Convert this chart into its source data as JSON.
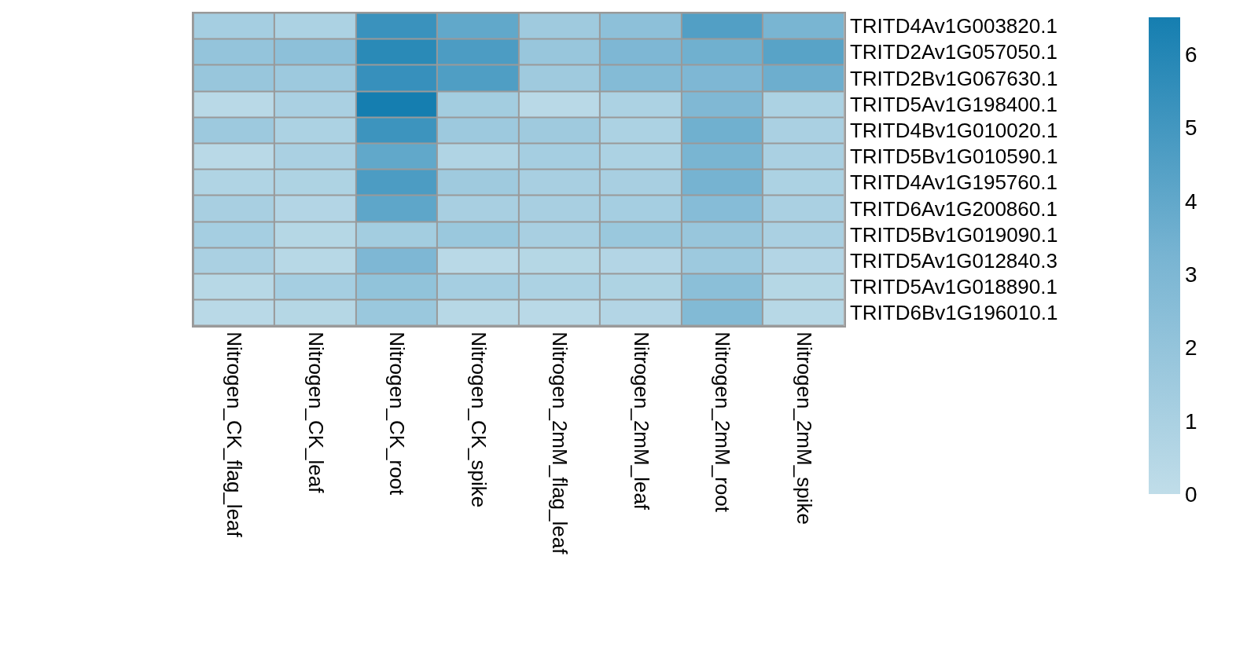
{
  "chart_data": {
    "type": "heatmap",
    "categories": [
      "Nitrogen_CK_flag_leaf",
      "Nitrogen_CK_leaf",
      "Nitrogen_CK_root",
      "Nitrogen_CK_spike",
      "Nitrogen_2mM_flag_leaf",
      "Nitrogen_2mM_leaf",
      "Nitrogen_2mM_root",
      "Nitrogen_2mM_spike"
    ],
    "y_categories": [
      "TRITD4Av1G003820.1",
      "TRITD2Av1G057050.1",
      "TRITD2Bv1G067630.1",
      "TRITD5Av1G198400.1",
      "TRITD4Bv1G010020.1",
      "TRITD5Bv1G010590.1",
      "TRITD4Av1G195760.1",
      "TRITD6Av1G200860.1",
      "TRITD5Bv1G019090.1",
      "TRITD5Av1G012840.3",
      "TRITD5Av1G018890.1",
      "TRITD6Bv1G196010.1"
    ],
    "cells": [
      [
        1.2,
        0.9,
        5.3,
        4.0,
        1.5,
        2.3,
        4.5,
        3.2
      ],
      [
        2.0,
        2.3,
        5.8,
        4.7,
        1.8,
        3.0,
        3.5,
        4.3
      ],
      [
        1.8,
        1.6,
        5.4,
        4.6,
        1.5,
        2.7,
        3.0,
        3.6
      ],
      [
        0.3,
        1.0,
        6.5,
        1.3,
        0.3,
        0.9,
        2.9,
        0.9
      ],
      [
        1.6,
        0.9,
        5.2,
        1.6,
        1.5,
        0.9,
        3.5,
        1.0
      ],
      [
        0.3,
        1.0,
        4.0,
        0.7,
        1.2,
        0.9,
        3.2,
        1.0
      ],
      [
        0.7,
        0.8,
        4.7,
        1.5,
        1.1,
        1.1,
        3.3,
        0.9
      ],
      [
        1.1,
        0.6,
        4.1,
        1.1,
        1.1,
        1.2,
        2.6,
        1.0
      ],
      [
        1.2,
        0.5,
        1.3,
        1.7,
        1.1,
        1.7,
        1.8,
        1.0
      ],
      [
        1.0,
        0.4,
        3.0,
        0.3,
        0.5,
        0.6,
        1.6,
        0.6
      ],
      [
        0.4,
        1.2,
        2.1,
        1.2,
        0.9,
        0.8,
        2.4,
        0.5
      ],
      [
        0.3,
        0.5,
        1.7,
        0.4,
        0.3,
        0.6,
        2.8,
        0.4
      ]
    ],
    "clim": [
      0,
      6.5
    ],
    "cticks": [
      0,
      1,
      2,
      3,
      4,
      5,
      6
    ]
  }
}
